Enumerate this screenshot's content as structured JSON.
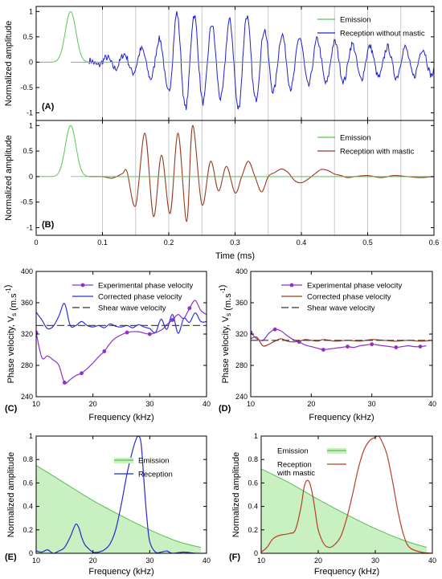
{
  "chart_data": [
    {
      "panel": "(A)",
      "type": "line",
      "ylabel": "Normalized amplitude",
      "xlabel": "",
      "xlim": [
        0,
        0.6
      ],
      "ylim": [
        -1.15,
        1.1
      ],
      "xticks": [
        0,
        0.1,
        0.2,
        0.3,
        0.4,
        0.5,
        0.6
      ],
      "yticks": [
        -1,
        -0.5,
        0,
        0.5,
        1
      ],
      "grid_x": [
        0.1,
        0.15,
        0.2,
        0.25,
        0.3,
        0.35,
        0.4,
        0.45,
        0.5,
        0.55
      ],
      "legend_position": "top-right",
      "series": [
        {
          "name": "Emission",
          "color": "#55c855",
          "kind": "pulse",
          "center": 0.052,
          "width": 0.008,
          "amplitude": 1,
          "xmax": 0.6
        },
        {
          "name": "Reception without mastic",
          "color": "#2020d0",
          "kind": "noisy_wave",
          "x": [
            0.08,
            0.13,
            0.17,
            0.2,
            0.212,
            0.225,
            0.235,
            0.25,
            0.265,
            0.28,
            0.3,
            0.315,
            0.33,
            0.35,
            0.37,
            0.39,
            0.42,
            0.45,
            0.48,
            0.51,
            0.55,
            0.6
          ],
          "env": [
            0.03,
            0.15,
            0.3,
            0.6,
            0.98,
            0.9,
            0.97,
            0.8,
            0.75,
            0.72,
            0.9,
            0.95,
            0.75,
            0.6,
            0.55,
            0.5,
            0.45,
            0.4,
            0.35,
            0.3,
            0.3,
            0.25
          ],
          "period": 0.0265,
          "phase": 0.212,
          "noise": 0.07
        }
      ]
    },
    {
      "panel": "(B)",
      "type": "line",
      "ylabel": "Normalized amplitude",
      "xlabel": "Time (ms)",
      "xlim": [
        0,
        0.6
      ],
      "ylim": [
        -1.15,
        1.1
      ],
      "xticks": [
        0,
        0.1,
        0.2,
        0.3,
        0.4,
        0.5,
        0.6
      ],
      "yticks": [
        -1,
        -0.5,
        0,
        0.5,
        1
      ],
      "grid_x": [
        0.1,
        0.15,
        0.2,
        0.25,
        0.3,
        0.35,
        0.4,
        0.45,
        0.5,
        0.55
      ],
      "legend_position": "top-right",
      "series": [
        {
          "name": "Emission",
          "color": "#55c855",
          "kind": "pulse",
          "center": 0.052,
          "width": 0.008,
          "amplitude": 1,
          "xmax": 0.6
        },
        {
          "name": "Reception with mastic",
          "color": "#9a3a1e",
          "kind": "knots",
          "x": [
            0.08,
            0.1,
            0.115,
            0.13,
            0.137,
            0.15,
            0.164,
            0.177,
            0.189,
            0.202,
            0.214,
            0.227,
            0.236,
            0.25,
            0.263,
            0.275,
            0.287,
            0.3,
            0.31,
            0.32,
            0.33,
            0.34,
            0.35,
            0.36,
            0.37,
            0.38,
            0.39,
            0.4,
            0.41,
            0.42,
            0.43,
            0.44,
            0.45,
            0.46,
            0.47,
            0.48,
            0.5,
            0.52,
            0.54,
            0.56,
            0.58,
            0.6
          ],
          "y": [
            0,
            0,
            -0.03,
            0.06,
            0.1,
            -0.57,
            0.85,
            -0.78,
            0.42,
            -0.72,
            0.85,
            -0.88,
            1.0,
            -0.55,
            0.3,
            -0.28,
            0.2,
            -0.32,
            0.0,
            0.3,
            0.0,
            -0.3,
            0.0,
            0.08,
            0.15,
            0.08,
            -0.08,
            -0.12,
            -0.05,
            0.05,
            0.14,
            0.12,
            0.05,
            0.02,
            -0.02,
            0.0,
            0.02,
            -0.02,
            0.02,
            0.0,
            -0.02,
            0.0
          ]
        }
      ]
    },
    {
      "panel": "(C)",
      "type": "line",
      "xlabel": "Frequency (kHz)",
      "ylabel": "Phase velocity, V",
      "ylabel_sub": "s",
      "ylabel_unit": " (m.s",
      "ylabel_sup": "-1",
      "ylabel_close": ")",
      "xlim": [
        10,
        40
      ],
      "ylim": [
        240,
        400
      ],
      "xticks": [
        10,
        20,
        30,
        40
      ],
      "yticks": [
        240,
        280,
        320,
        360,
        400
      ],
      "legend_position": "top-right",
      "series": [
        {
          "name": "Experimental phase velocity",
          "color": "#9030c8",
          "marker": true,
          "x": [
            10,
            11,
            12,
            13,
            14,
            15,
            16,
            17,
            18,
            19,
            20,
            21,
            22,
            23,
            24,
            26,
            28,
            30,
            32,
            33,
            34,
            35,
            36,
            37,
            38,
            39,
            40
          ],
          "y": [
            322,
            290,
            292,
            287,
            280,
            258,
            262,
            267,
            270,
            276,
            283,
            291,
            298,
            308,
            315,
            322,
            323,
            320,
            325,
            332,
            338,
            345,
            340,
            353,
            363,
            350,
            345
          ],
          "marker_x": [
            10,
            15,
            18,
            22,
            26,
            30,
            34,
            37
          ]
        },
        {
          "name": "Corrected phase velocity",
          "color": "#3030d8",
          "x": [
            10,
            11,
            12,
            13,
            14,
            15,
            16,
            17,
            18,
            19,
            20,
            21,
            22,
            23,
            24,
            25,
            26,
            27,
            28,
            29,
            30,
            31,
            32,
            33,
            34,
            35,
            36,
            37,
            38,
            39,
            40
          ],
          "y": [
            348,
            338,
            327,
            330,
            343,
            359,
            331,
            331,
            336,
            331,
            329,
            331,
            328,
            333,
            330,
            329,
            331,
            328,
            332,
            329,
            327,
            322,
            339,
            326,
            345,
            321,
            340,
            335,
            347,
            336,
            336
          ]
        },
        {
          "name": "Shear wave velocity",
          "color": "#333333",
          "dash": "9 4",
          "x": [
            10,
            40
          ],
          "y": [
            331,
            331
          ]
        }
      ]
    },
    {
      "panel": "(D)",
      "type": "line",
      "xlabel": "Frequency (kHz)",
      "ylabel": "Phase velocity, V",
      "ylabel_sub": "s",
      "ylabel_unit": " (m.s",
      "ylabel_sup": "-1",
      "ylabel_close": ")",
      "xlim": [
        10,
        40
      ],
      "ylim": [
        240,
        400
      ],
      "xticks": [
        10,
        20,
        30,
        40
      ],
      "yticks": [
        240,
        280,
        320,
        360,
        400
      ],
      "legend_position": "top-right",
      "series": [
        {
          "name": "Experimental phase velocity",
          "color": "#9030c8",
          "marker": true,
          "x": [
            10,
            11,
            12,
            13,
            14,
            15,
            16,
            17,
            18,
            19,
            20,
            21,
            22,
            23,
            24,
            25,
            26,
            27,
            28,
            29,
            30,
            31,
            32,
            33,
            34,
            35,
            36,
            37,
            38,
            39
          ],
          "y": [
            322,
            314,
            312,
            321,
            326,
            324,
            318,
            313,
            310,
            306,
            304,
            302,
            300,
            301,
            302,
            303,
            304,
            303,
            305,
            306,
            307,
            306,
            305,
            304,
            303,
            304,
            305,
            304,
            304,
            305
          ],
          "marker_x": [
            10,
            14,
            18,
            22,
            26,
            30,
            34,
            38
          ]
        },
        {
          "name": "Corrected phase velocity",
          "color": "#9a3a1e",
          "x": [
            10,
            11,
            12,
            13,
            14,
            15,
            16,
            17,
            18,
            19,
            20,
            21,
            22,
            23,
            24,
            26,
            28,
            30,
            32,
            34,
            36,
            38,
            40
          ],
          "y": [
            314,
            316,
            305,
            307,
            311,
            314,
            311,
            310,
            311,
            313,
            312,
            311,
            313,
            312,
            311,
            312,
            311,
            313,
            312,
            311,
            312,
            311,
            312
          ]
        },
        {
          "name": "Shear wave velocity",
          "color": "#333333",
          "dash": "9 4",
          "x": [
            10,
            40
          ],
          "y": [
            312,
            312
          ]
        }
      ]
    },
    {
      "panel": "(E)",
      "type": "area",
      "xlabel": "Frequency (kHz)",
      "ylabel": "Normalized amplitude",
      "xlim": [
        10,
        40
      ],
      "ylim": [
        0,
        1
      ],
      "xticks": [
        10,
        20,
        30,
        40
      ],
      "yticks": [
        0,
        0.2,
        0.4,
        0.6,
        0.8,
        1
      ],
      "legend_position": "top-right",
      "series": [
        {
          "name": "Emission",
          "color": "#5cba5c",
          "fill": "#c8f0c0",
          "kind": "area",
          "x": [
            10,
            15,
            20,
            25,
            30,
            35,
            39
          ],
          "y": [
            0.75,
            0.6,
            0.45,
            0.32,
            0.2,
            0.1,
            0.05
          ]
        },
        {
          "name": "Reception",
          "color": "#2828d0",
          "x": [
            10,
            11,
            12,
            13,
            14,
            15,
            16,
            16.5,
            17,
            17.5,
            18,
            18.5,
            19,
            20,
            21,
            22,
            23,
            24,
            25,
            26,
            27,
            27.5,
            28,
            28.5,
            29,
            29.5,
            30,
            31,
            32,
            33,
            34,
            36,
            38,
            40
          ],
          "y": [
            0.02,
            0.01,
            0.03,
            0.0,
            0.02,
            0.05,
            0.14,
            0.2,
            0.25,
            0.22,
            0.14,
            0.08,
            0.05,
            0.01,
            0.01,
            0.03,
            0.08,
            0.2,
            0.42,
            0.68,
            0.88,
            0.96,
            1.0,
            0.93,
            0.6,
            0.3,
            0.1,
            0.01,
            0.01,
            0.02,
            0.0,
            0.01,
            0.0,
            0.0
          ]
        }
      ]
    },
    {
      "panel": "(F)",
      "type": "area",
      "xlabel": "Frequency (kHz)",
      "ylabel": "Normalized amplitude",
      "xlim": [
        10,
        40
      ],
      "ylim": [
        0,
        1
      ],
      "xticks": [
        10,
        20,
        30,
        40
      ],
      "yticks": [
        0,
        0.2,
        0.4,
        0.6,
        0.8,
        1
      ],
      "legend_position": "top-left",
      "series": [
        {
          "name": "Emission",
          "color": "#5cba5c",
          "fill": "#c8f0c0",
          "kind": "area",
          "x": [
            10,
            15,
            20,
            25,
            30,
            35,
            39
          ],
          "y": [
            0.72,
            0.6,
            0.46,
            0.33,
            0.21,
            0.11,
            0.05
          ]
        },
        {
          "name": "Reception",
          "name_line2": "with mastic",
          "color": "#b84028",
          "x": [
            10,
            11,
            12,
            13,
            14,
            15,
            16,
            17,
            17.5,
            18,
            18.5,
            19,
            19.5,
            20,
            21,
            22,
            23,
            24,
            25,
            26,
            27,
            28,
            29,
            30,
            30.5,
            31,
            32,
            33,
            34,
            35,
            36,
            38,
            40
          ],
          "y": [
            0.01,
            0.05,
            0.12,
            0.15,
            0.16,
            0.17,
            0.2,
            0.4,
            0.56,
            0.62,
            0.6,
            0.5,
            0.35,
            0.2,
            0.08,
            0.05,
            0.08,
            0.15,
            0.3,
            0.5,
            0.72,
            0.88,
            0.96,
            0.99,
            1.0,
            0.97,
            0.85,
            0.62,
            0.35,
            0.15,
            0.05,
            0.01,
            0.0
          ]
        }
      ]
    }
  ]
}
